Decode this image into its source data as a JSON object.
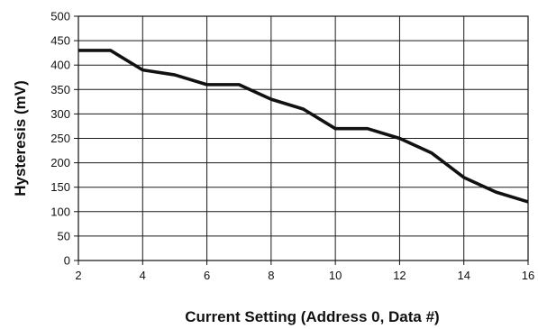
{
  "chart_data": {
    "type": "line",
    "title": "",
    "xlabel": "Current Setting (Address 0, Data #)",
    "ylabel": "Hysteresis (mV)",
    "xlim": [
      2,
      16
    ],
    "ylim": [
      0,
      500
    ],
    "x_ticks": [
      2,
      4,
      6,
      8,
      10,
      12,
      14,
      16
    ],
    "y_ticks": [
      0,
      50,
      100,
      150,
      200,
      250,
      300,
      350,
      400,
      450,
      500
    ],
    "grid": true,
    "legend": "none",
    "series": [
      {
        "x": [
          2,
          3,
          4,
          5,
          6,
          7,
          8,
          9,
          10,
          11,
          12,
          13,
          14,
          15,
          16
        ],
        "y": [
          430,
          430,
          390,
          380,
          360,
          360,
          330,
          310,
          270,
          270,
          250,
          220,
          170,
          140,
          120
        ],
        "color": "#111111"
      }
    ]
  }
}
